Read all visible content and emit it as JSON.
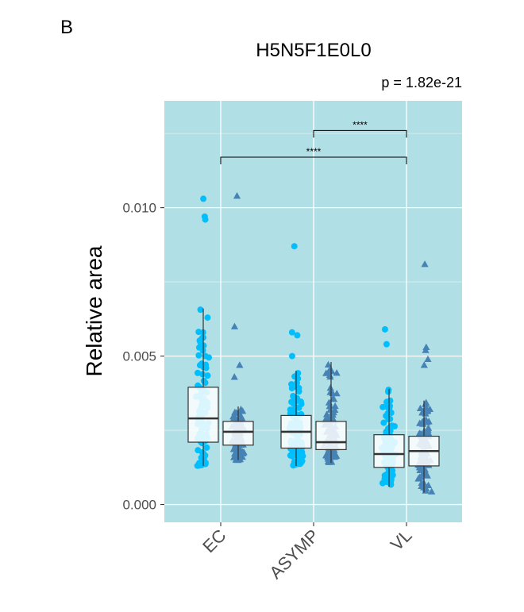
{
  "panel_label": "B",
  "chart_data": {
    "type": "box",
    "title": "H5N5F1E0L0",
    "annotation": "p = 1.82e-21",
    "xlabel": "",
    "ylabel": "Relative area",
    "categories": [
      "EC",
      "ASYMP",
      "VL"
    ],
    "ylim": [
      -0.0006,
      0.0136
    ],
    "yticks": [
      0.0,
      0.005,
      0.01
    ],
    "ytick_labels": [
      "0.000",
      "0.005",
      "0.010"
    ],
    "grid": true,
    "panel_background": "#b0dfe5",
    "series": [
      {
        "color": "#00bfff",
        "marker": "circle",
        "boxes": [
          {
            "category": "EC",
            "q1": 0.0021,
            "median": 0.0029,
            "q3": 0.00395,
            "whisker_low": 0.0013,
            "whisker_high": 0.0066
          },
          {
            "category": "ASYMP",
            "q1": 0.0019,
            "median": 0.00245,
            "q3": 0.003,
            "whisker_low": 0.0013,
            "whisker_high": 0.0045
          },
          {
            "category": "VL",
            "q1": 0.00125,
            "median": 0.0017,
            "q3": 0.00235,
            "whisker_low": 0.0006,
            "whisker_high": 0.0039
          }
        ],
        "outliers": [
          {
            "category": "EC",
            "values": [
              0.0103,
              0.0097,
              0.0096
            ]
          },
          {
            "category": "ASYMP",
            "values": [
              0.0087,
              0.0058,
              0.0057,
              0.005
            ]
          },
          {
            "category": "VL",
            "values": [
              0.0059,
              0.0054
            ]
          }
        ]
      },
      {
        "color": "#4682b4",
        "marker": "triangle",
        "boxes": [
          {
            "category": "EC",
            "q1": 0.002,
            "median": 0.00245,
            "q3": 0.0028,
            "whisker_low": 0.0015,
            "whisker_high": 0.0033
          },
          {
            "category": "ASYMP",
            "q1": 0.00185,
            "median": 0.0021,
            "q3": 0.0028,
            "whisker_low": 0.0014,
            "whisker_high": 0.0048
          },
          {
            "category": "VL",
            "q1": 0.0013,
            "median": 0.0018,
            "q3": 0.0023,
            "whisker_low": 0.0004,
            "whisker_high": 0.0035
          }
        ],
        "outliers": [
          {
            "category": "EC",
            "values": [
              0.0104,
              0.006,
              0.0047,
              0.0043
            ]
          },
          {
            "category": "VL",
            "values": [
              0.0081,
              0.0053,
              0.0052,
              0.0047,
              0.0049
            ]
          }
        ]
      }
    ],
    "significance": [
      {
        "from": "ASYMP",
        "to": "VL",
        "label": "****",
        "y": 0.0126
      },
      {
        "from": "EC",
        "to": "VL",
        "label": "****",
        "y": 0.0117
      }
    ]
  }
}
